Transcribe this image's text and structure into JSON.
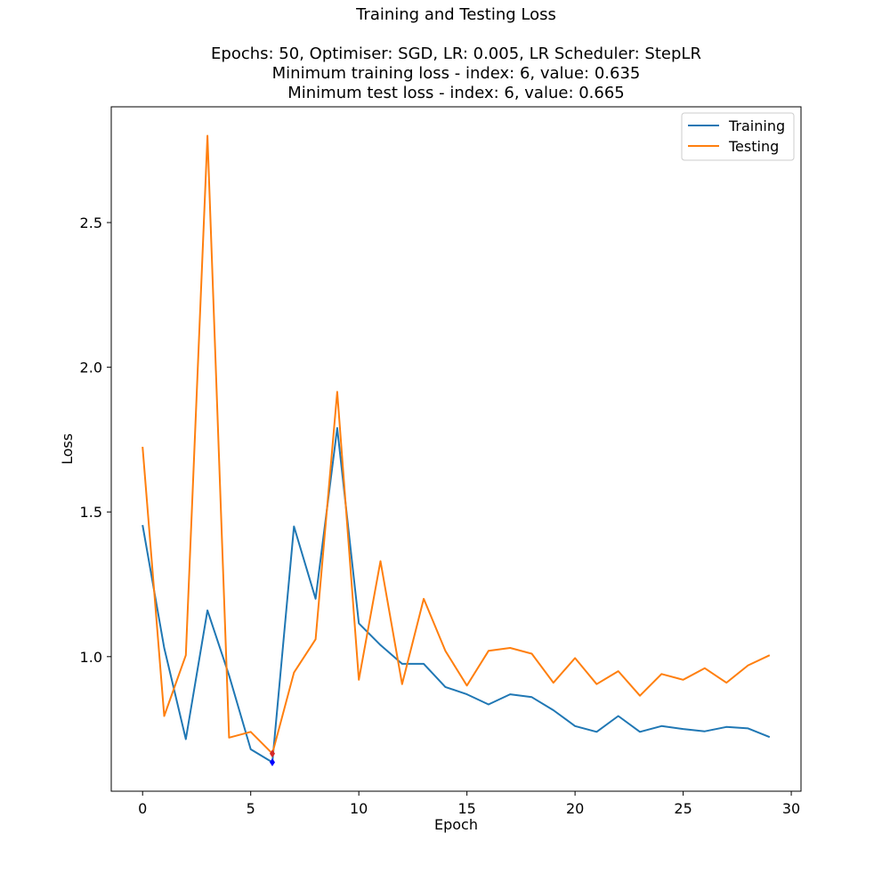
{
  "chart_data": {
    "type": "line",
    "title": "Training and Testing Loss",
    "subtitle_lines": [
      "Epochs: 50, Optimiser: SGD, LR: 0.005, LR Scheduler: StepLR",
      "Minimum training loss - index: 6, value: 0.635",
      "Minimum test loss - index: 6, value: 0.665"
    ],
    "xlabel": "Epoch",
    "ylabel": "Loss",
    "xlim": [
      -1.45,
      30.45
    ],
    "ylim": [
      0.535,
      2.9
    ],
    "xticks": [
      0,
      5,
      10,
      15,
      20,
      25,
      30
    ],
    "yticks": [
      1.0,
      1.5,
      2.0,
      2.5
    ],
    "ytick_labels": [
      "1.0",
      "1.5",
      "2.0",
      "2.5"
    ],
    "grid": false,
    "legend_position": "top-right",
    "x": [
      0,
      1,
      2,
      3,
      4,
      5,
      6,
      7,
      8,
      9,
      10,
      11,
      12,
      13,
      14,
      15,
      16,
      17,
      18,
      19,
      20,
      21,
      22,
      23,
      24,
      25,
      26,
      27,
      28,
      29
    ],
    "series": [
      {
        "name": "Training",
        "color": "#1f77b4",
        "values": [
          1.455,
          1.03,
          0.715,
          1.16,
          0.935,
          0.68,
          0.635,
          1.45,
          1.2,
          1.79,
          1.115,
          1.04,
          0.975,
          0.975,
          0.895,
          0.87,
          0.835,
          0.87,
          0.86,
          0.815,
          0.76,
          0.74,
          0.795,
          0.74,
          0.76,
          0.75,
          0.742,
          0.757,
          0.752,
          0.722
        ]
      },
      {
        "name": "Testing",
        "color": "#ff7f0e",
        "values": [
          1.725,
          0.795,
          1.005,
          2.8,
          0.72,
          0.74,
          0.665,
          0.945,
          1.06,
          1.915,
          0.92,
          1.33,
          0.905,
          1.2,
          1.02,
          0.9,
          1.02,
          1.03,
          1.01,
          0.91,
          0.995,
          0.905,
          0.95,
          0.865,
          0.94,
          0.92,
          0.96,
          0.91,
          0.97,
          1.005
        ]
      }
    ],
    "min_markers": [
      {
        "series": "Training",
        "x": 6,
        "y": 0.635,
        "color": "#0000ff"
      },
      {
        "series": "Testing",
        "x": 6,
        "y": 0.665,
        "color": "#d62728"
      }
    ]
  }
}
